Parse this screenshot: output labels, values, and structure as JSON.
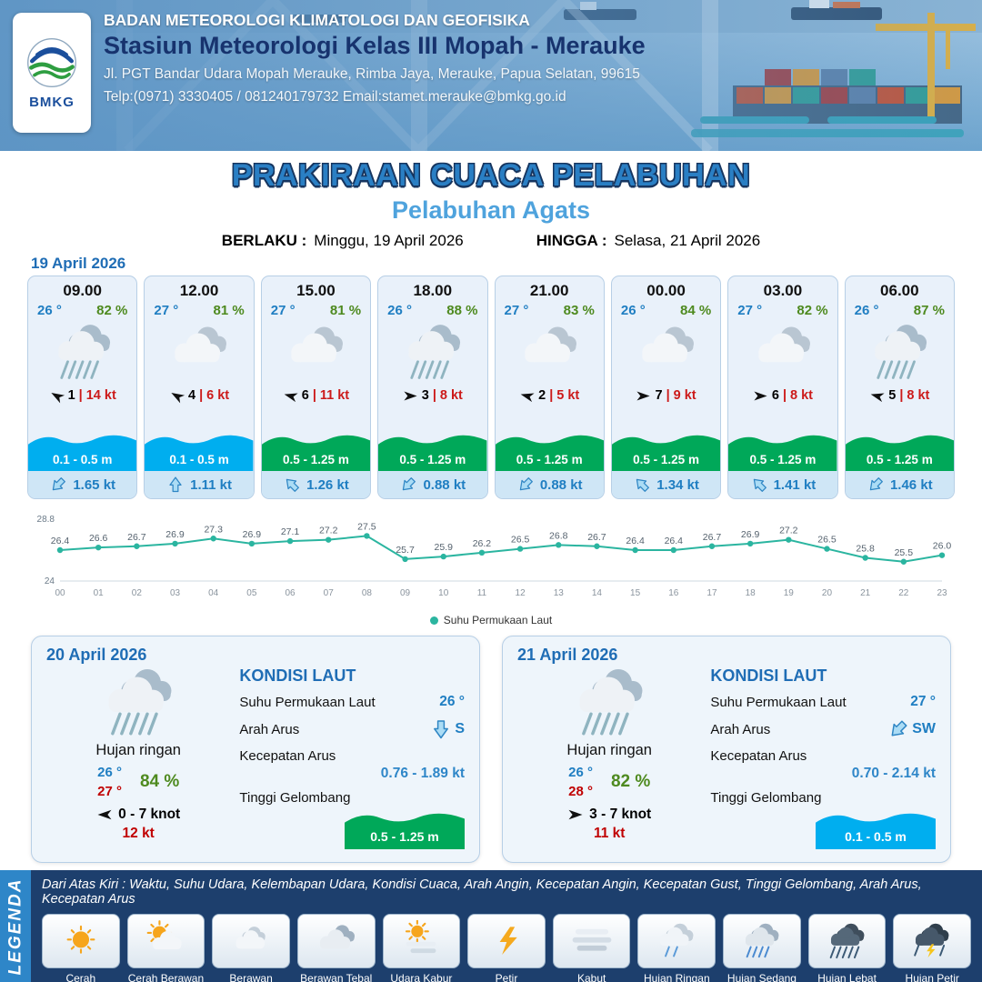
{
  "header": {
    "logo_label": "BMKG",
    "org": "BADAN METEOROLOGI KLIMATOLOGI DAN GEOFISIKA",
    "station": "Stasiun Meteorologi Kelas III Mopah - Merauke",
    "address": "Jl. PGT Bandar Udara Mopah Merauke, Rimba Jaya, Merauke, Papua Selatan, 99615",
    "contact": "Telp:(0971) 3330405 / 081240179732  Email:stamet.merauke@bmkg.go.id"
  },
  "title": {
    "main": "PRAKIRAAN CUACA PELABUHAN",
    "sub": "Pelabuhan Agats",
    "berlaku_label": "BERLAKU :",
    "berlaku_value": "Minggu, 19 April 2026",
    "hingga_label": "HINGGA :",
    "hingga_value": "Selasa, 21 April 2026"
  },
  "forecast_date": "19 April 2026",
  "colors": {
    "wave_blue": "#00aeef",
    "wave_green": "#00a859",
    "temp_blue": "#1f7ec2",
    "humidity_green": "#4e8a1f",
    "gust_red": "#cc1a1a",
    "accent_blue": "#2e86c8",
    "chart_line": "#2bb5a0"
  },
  "forecast_cards": [
    {
      "time": "09.00",
      "temp": "26 °",
      "rh": "82 %",
      "icon": "rain",
      "wind_speed": "1",
      "gust": "14 kt",
      "wind_rot": 210,
      "wave": "0.1 - 0.5 m",
      "wave_color": "#00aeef",
      "current": "1.65 kt",
      "current_rot": 135
    },
    {
      "time": "12.00",
      "temp": "27 °",
      "rh": "81 %",
      "icon": "cloudy",
      "wind_speed": "4",
      "gust": "6 kt",
      "wind_rot": 210,
      "wave": "0.1 - 0.5 m",
      "wave_color": "#00aeef",
      "current": "1.11 kt",
      "current_rot": 270
    },
    {
      "time": "15.00",
      "temp": "27 °",
      "rh": "81 %",
      "icon": "cloudy",
      "wind_speed": "6",
      "gust": "11 kt",
      "wind_rot": 195,
      "wave": "0.5 - 1.25 m",
      "wave_color": "#00a859",
      "current": "1.26 kt",
      "current_rot": 225
    },
    {
      "time": "18.00",
      "temp": "26 °",
      "rh": "88 %",
      "icon": "rain",
      "wind_speed": "3",
      "gust": "8 kt",
      "wind_rot": 0,
      "wave": "0.5 - 1.25 m",
      "wave_color": "#00a859",
      "current": "0.88 kt",
      "current_rot": 135
    },
    {
      "time": "21.00",
      "temp": "27 °",
      "rh": "83 %",
      "icon": "cloudy",
      "wind_speed": "2",
      "gust": "5 kt",
      "wind_rot": 195,
      "wave": "0.5 - 1.25 m",
      "wave_color": "#00a859",
      "current": "0.88 kt",
      "current_rot": 135
    },
    {
      "time": "00.00",
      "temp": "26 °",
      "rh": "84 %",
      "icon": "cloudy",
      "wind_speed": "7",
      "gust": "9 kt",
      "wind_rot": 0,
      "wave": "0.5 - 1.25 m",
      "wave_color": "#00a859",
      "current": "1.34 kt",
      "current_rot": 225
    },
    {
      "time": "03.00",
      "temp": "27 °",
      "rh": "82 %",
      "icon": "cloudy",
      "wind_speed": "6",
      "gust": "8 kt",
      "wind_rot": 0,
      "wave": "0.5 - 1.25 m",
      "wave_color": "#00a859",
      "current": "1.41 kt",
      "current_rot": 225
    },
    {
      "time": "06.00",
      "temp": "26 °",
      "rh": "87 %",
      "icon": "rain",
      "wind_speed": "5",
      "gust": "8 kt",
      "wind_rot": 195,
      "wave": "0.5 - 1.25 m",
      "wave_color": "#00a859",
      "current": "1.46 kt",
      "current_rot": 135
    }
  ],
  "chart_data": {
    "type": "line",
    "title": "Suhu Permukaan Laut",
    "series_label": "Suhu Permukaan Laut",
    "x": [
      "00",
      "01",
      "02",
      "03",
      "04",
      "05",
      "06",
      "07",
      "08",
      "09",
      "10",
      "11",
      "12",
      "13",
      "14",
      "15",
      "16",
      "17",
      "18",
      "19",
      "20",
      "21",
      "22",
      "23"
    ],
    "values": [
      26.4,
      26.6,
      26.7,
      26.9,
      27.3,
      26.9,
      27.1,
      27.2,
      27.5,
      25.7,
      25.9,
      26.2,
      26.5,
      26.8,
      26.7,
      26.4,
      26.4,
      26.7,
      26.9,
      27.2,
      26.5,
      25.8,
      25.5,
      26.0
    ],
    "xlabel": "",
    "ylabel": "",
    "ylim": [
      24,
      28.8
    ],
    "grid": false,
    "legend_position": "bottom",
    "line_color": "#2bb5a0"
  },
  "daily_cards": [
    {
      "date": "20 April 2026",
      "icon": "rain",
      "condition": "Hujan ringan",
      "temp_min": "26 °",
      "temp_max": "27 °",
      "rh": "84 %",
      "wind_rot": 180,
      "wind_range": "0  - 7 knot",
      "gust": "12 kt",
      "sea_title": "KONDISI LAUT",
      "sst_label": "Suhu Permukaan Laut",
      "sst": "26 °",
      "dir_label": "Arah Arus",
      "dir": "S",
      "dir_rot": 90,
      "speed_label": "Kecepatan Arus",
      "speed": "0.76 - 1.89 kt",
      "wave_label": "Tinggi Gelombang",
      "wave": "0.5 - 1.25 m",
      "wave_color": "#00a859"
    },
    {
      "date": "21 April 2026",
      "icon": "rain",
      "condition": "Hujan ringan",
      "temp_min": "26 °",
      "temp_max": "28 °",
      "rh": "82 %",
      "wind_rot": 0,
      "wind_range": "3  - 7 knot",
      "gust": "11 kt",
      "sea_title": "KONDISI LAUT",
      "sst_label": "Suhu Permukaan Laut",
      "sst": "27 °",
      "dir_label": "Arah Arus",
      "dir": "SW",
      "dir_rot": 135,
      "speed_label": "Kecepatan Arus",
      "speed": "0.70 - 2.14 kt",
      "wave_label": "Tinggi Gelombang",
      "wave": "0.1 - 0.5 m",
      "wave_color": "#00aeef"
    }
  ],
  "legend": {
    "title": "LEGENDA",
    "note": "Dari Atas Kiri : Waktu, Suhu Udara, Kelembapan Udara, Kondisi Cuaca, Arah Angin, Kecepatan Angin, Kecepatan Gust, Tinggi Gelombang, Arah Arus, Kecepatan Arus",
    "items": [
      {
        "label": "Cerah",
        "icon": "sun"
      },
      {
        "label": "Cerah Berawan",
        "icon": "sun-cloud"
      },
      {
        "label": "Berawan",
        "icon": "cloud"
      },
      {
        "label": "Berawan Tebal",
        "icon": "clouds"
      },
      {
        "label": "Udara Kabur",
        "icon": "haze"
      },
      {
        "label": "Petir",
        "icon": "bolt"
      },
      {
        "label": "Kabut",
        "icon": "fog"
      },
      {
        "label": "Hujan Ringan",
        "icon": "rain-light"
      },
      {
        "label": "Hujan Sedang",
        "icon": "rain-medium"
      },
      {
        "label": "Hujan Lebat",
        "icon": "rain-heavy"
      },
      {
        "label": "Hujan Petir",
        "icon": "storm"
      }
    ]
  }
}
